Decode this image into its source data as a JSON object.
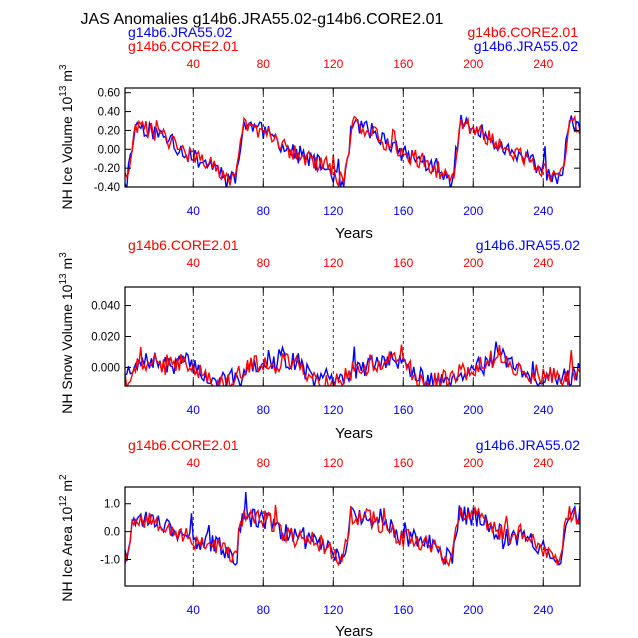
{
  "title": "JAS Anomalies g14b6.JRA55.02-g14b6.CORE2.01",
  "colors": {
    "jra": "#0000ff",
    "core": "#ff0000",
    "axis": "#000000"
  },
  "labels": {
    "jra": "g14b6.JRA55.02",
    "core": "g14b6.CORE2.01"
  },
  "chart_data": [
    {
      "type": "line",
      "title": "",
      "ylabel": "NH Ice Volume 10^13 m^3",
      "ylabel_main": "NH Ice Volume 10",
      "ylabel_exp": "13",
      "ylabel_unit": " m",
      "ylabel_unit_exp": "3",
      "xlabel": "Years",
      "xlim": [
        1,
        261
      ],
      "ylim": [
        -0.4,
        0.65
      ],
      "yticks": [
        -0.4,
        -0.2,
        0.0,
        0.2,
        0.4,
        0.6
      ],
      "yticklabels": [
        "-0.40",
        "-0.20",
        "0.00",
        "0.20",
        "0.40",
        "0.60"
      ],
      "xticks": [
        40,
        80,
        120,
        160,
        200,
        240
      ],
      "xticklabels": [
        "40",
        "80",
        "120",
        "160",
        "200",
        "240"
      ],
      "legend_left": [
        "g14b6.JRA55.02",
        "g14b6.CORE2.01"
      ],
      "legend_right": [
        "g14b6.CORE2.01",
        "g14b6.JRA55.02"
      ],
      "base": {
        "amp": 0.62,
        "rise": 0.08,
        "drift": -0.02,
        "noise": 0.09,
        "offset": -0.02
      },
      "series": [
        {
          "name": "g14b6.JRA55.02",
          "color": "#0000ff",
          "seed": 11
        },
        {
          "name": "g14b6.CORE2.01",
          "color": "#ff0000",
          "seed": 29
        }
      ]
    },
    {
      "type": "line",
      "title": "",
      "ylabel": "NH Snow Volume 10^13 m^3",
      "ylabel_main": "NH Snow Volume 10",
      "ylabel_exp": "13",
      "ylabel_unit": " m",
      "ylabel_unit_exp": "3",
      "xlabel": "Years",
      "xlim": [
        1,
        261
      ],
      "ylim": [
        -0.012,
        0.052
      ],
      "yticks": [
        0.0,
        0.02,
        0.04
      ],
      "yticklabels": [
        "0.000",
        "0.020",
        "0.040"
      ],
      "xticks": [
        40,
        80,
        120,
        160,
        200,
        240
      ],
      "xticklabels": [
        "40",
        "80",
        "120",
        "160",
        "200",
        "240"
      ],
      "legend_left": [
        "g14b6.CORE2.01"
      ],
      "legend_right": [
        "g14b6.JRA55.02"
      ],
      "base": {
        "amp": 0.018,
        "rise": 0.25,
        "drift": 0.004,
        "noise": 0.006,
        "offset": -0.002
      },
      "series": [
        {
          "name": "g14b6.JRA55.02",
          "color": "#0000ff",
          "seed": 7
        },
        {
          "name": "g14b6.CORE2.01",
          "color": "#ff0000",
          "seed": 41
        }
      ]
    },
    {
      "type": "line",
      "title": "",
      "ylabel": "NH Ice Area 10^12 m^2",
      "ylabel_main": "NH Ice Area 10",
      "ylabel_exp": "12",
      "ylabel_unit": " m",
      "ylabel_unit_exp": "2",
      "xlabel": "Years",
      "xlim": [
        1,
        261
      ],
      "ylim": [
        -1.95,
        1.6
      ],
      "yticks": [
        -1.0,
        0.0,
        1.0
      ],
      "yticklabels": [
        "-1.0",
        "0.0",
        "1.0"
      ],
      "xticks": [
        40,
        80,
        120,
        160,
        200,
        240
      ],
      "xticklabels": [
        "40",
        "80",
        "120",
        "160",
        "200",
        "240"
      ],
      "legend_left": [
        "g14b6.CORE2.01"
      ],
      "legend_right": [
        "g14b6.JRA55.02"
      ],
      "base": {
        "amp": 1.55,
        "rise": 0.06,
        "drift": -0.1,
        "noise": 0.35,
        "offset": -0.1
      },
      "series": [
        {
          "name": "g14b6.JRA55.02",
          "color": "#0000ff",
          "seed": 17
        },
        {
          "name": "g14b6.CORE2.01",
          "color": "#ff0000",
          "seed": 53
        }
      ]
    }
  ]
}
